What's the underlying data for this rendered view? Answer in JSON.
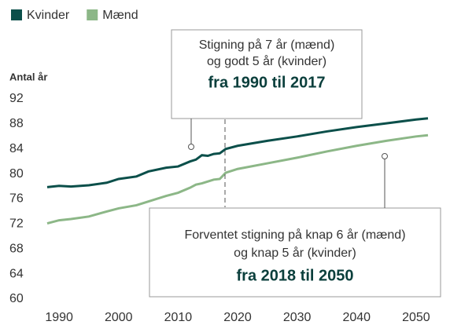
{
  "chart_data": {
    "type": "line",
    "y_label": "Antal år",
    "x": [
      1988,
      1990,
      1992,
      1995,
      1998,
      2000,
      2003,
      2005,
      2008,
      2010,
      2012,
      2013,
      2014,
      2015,
      2016,
      2017,
      2018,
      2020,
      2025,
      2030,
      2035,
      2040,
      2045,
      2050,
      2052
    ],
    "series": [
      {
        "name": "Kvinder",
        "color": "#0b4f4a",
        "values": [
          77.9,
          78.1,
          78.0,
          78.2,
          78.6,
          79.2,
          79.6,
          80.4,
          81.0,
          81.2,
          82.0,
          82.3,
          83.0,
          82.9,
          83.2,
          83.3,
          84.0,
          84.5,
          85.3,
          86.0,
          86.8,
          87.5,
          88.1,
          88.7,
          88.9
        ]
      },
      {
        "name": "Mænd",
        "color": "#8cb787",
        "values": [
          72.1,
          72.6,
          72.8,
          73.2,
          74.0,
          74.5,
          75.0,
          75.6,
          76.5,
          77.0,
          77.8,
          78.3,
          78.5,
          78.8,
          79.1,
          79.2,
          80.2,
          80.8,
          81.7,
          82.6,
          83.6,
          84.5,
          85.3,
          86.0,
          86.2
        ]
      }
    ],
    "xlim": [
      1988,
      2052
    ],
    "xticks": [
      1990,
      2000,
      2010,
      2020,
      2030,
      2040,
      2050
    ],
    "ylim": [
      60,
      92
    ],
    "yticks": [
      60,
      64,
      68,
      72,
      76,
      80,
      84,
      88,
      92
    ],
    "annotations": [
      {
        "lines": [
          "Stigning på 7 år (mænd)",
          "og godt 5 år (kvinder)"
        ],
        "bold": "fra 1990 til 2017"
      },
      {
        "lines": [
          "Forventet stigning på knap 6 år (mænd)",
          "og knap 5 år (kvinder)"
        ],
        "bold": "fra 2018 til 2050"
      }
    ]
  }
}
